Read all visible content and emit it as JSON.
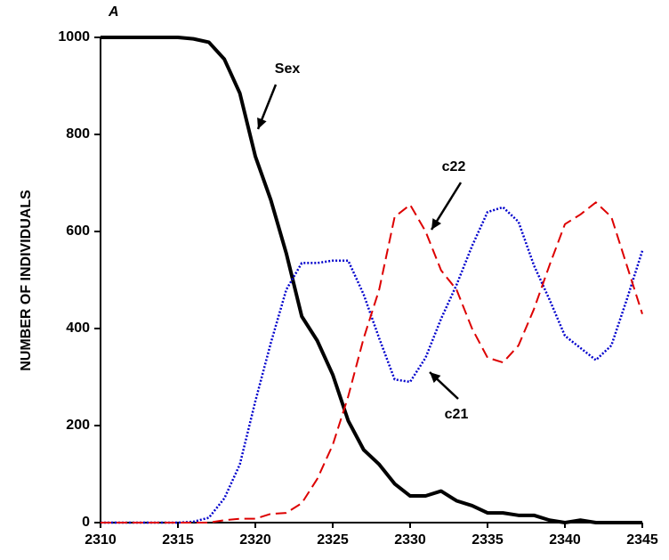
{
  "chart_data": {
    "type": "line",
    "title": "A",
    "ylabel": "NUMBER OF INDIVIDUALS",
    "x": [
      2310,
      2311,
      2312,
      2313,
      2314,
      2315,
      2316,
      2317,
      2318,
      2319,
      2320,
      2321,
      2322,
      2323,
      2324,
      2325,
      2326,
      2327,
      2328,
      2329,
      2330,
      2331,
      2332,
      2333,
      2334,
      2335,
      2336,
      2337,
      2338,
      2339,
      2340,
      2341,
      2342,
      2343,
      2344,
      2345
    ],
    "series": [
      {
        "name": "Sex",
        "color": "#000000",
        "linestyle": "solid",
        "values": [
          1000,
          1000,
          1000,
          1000,
          1000,
          1000,
          997,
          990,
          955,
          885,
          755,
          665,
          555,
          425,
          375,
          305,
          210,
          150,
          120,
          80,
          55,
          55,
          65,
          45,
          35,
          20,
          20,
          15,
          15,
          5,
          0,
          5,
          0,
          0,
          0,
          0
        ]
      },
      {
        "name": "c21",
        "color": "#0000cc",
        "linestyle": "dotted",
        "values": [
          0,
          0,
          0,
          0,
          0,
          0,
          2,
          10,
          50,
          120,
          250,
          370,
          480,
          535,
          535,
          540,
          540,
          470,
          380,
          295,
          290,
          340,
          420,
          490,
          570,
          640,
          650,
          620,
          530,
          460,
          385,
          360,
          335,
          365,
          460,
          560
        ]
      },
      {
        "name": "c22",
        "color": "#dd0000",
        "linestyle": "dashed",
        "values": [
          0,
          0,
          0,
          0,
          0,
          0,
          0,
          0,
          5,
          8,
          8,
          18,
          20,
          40,
          90,
          160,
          260,
          380,
          480,
          630,
          655,
          600,
          520,
          480,
          400,
          340,
          330,
          365,
          440,
          530,
          615,
          635,
          660,
          630,
          530,
          430
        ]
      }
    ],
    "xlim": [
      2310,
      2345
    ],
    "xticks": [
      2310,
      2315,
      2320,
      2325,
      2330,
      2335,
      2340,
      2345
    ],
    "ylim": [
      0,
      1000
    ],
    "yticks": [
      0,
      200,
      400,
      600,
      800,
      1000
    ]
  }
}
